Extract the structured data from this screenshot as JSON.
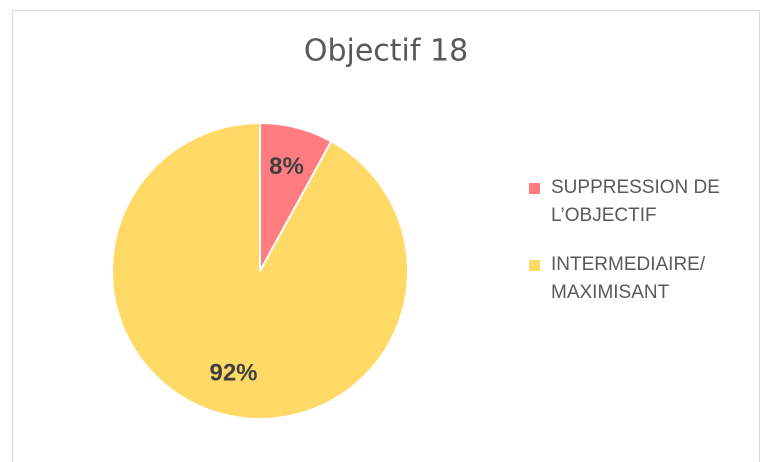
{
  "chart_data": {
    "type": "pie",
    "title": "Objectif 18",
    "categories": [
      "SUPPRESSION DE L’OBJECTIF",
      "INTERMEDIAIRE/ MAXIMISANT"
    ],
    "values": [
      8,
      92
    ],
    "value_labels": [
      "8%",
      "92%"
    ],
    "colors": [
      "#ff7c80",
      "#ffd966"
    ],
    "legend": "right"
  }
}
